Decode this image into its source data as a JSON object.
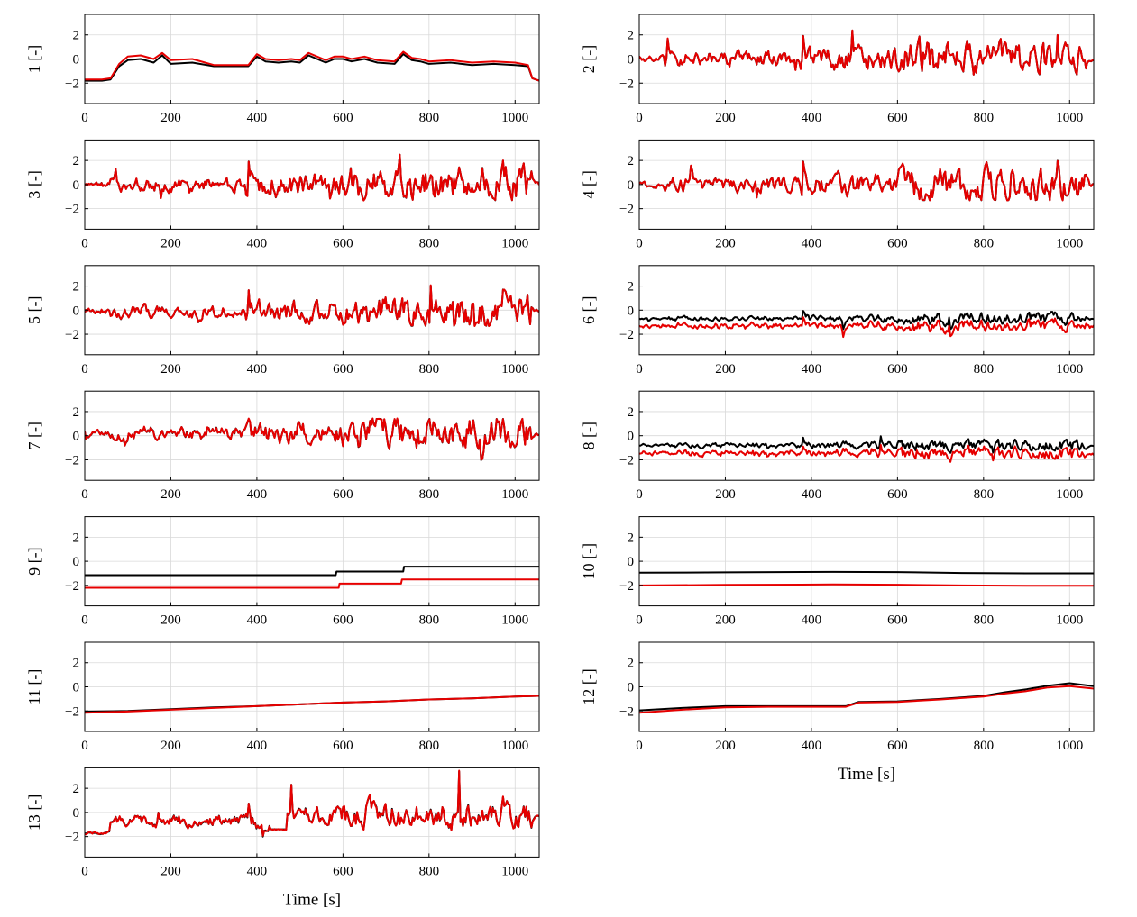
{
  "figure": {
    "x_label": "Time [s]",
    "colors": {
      "series_a": "#000000",
      "series_b": "#e60000",
      "grid": "#d9d9d9",
      "axis": "#000000"
    }
  },
  "chart_data": [
    {
      "id": 1,
      "type": "line",
      "ylabel": "1 [-]",
      "xlabel": "",
      "xlim": [
        0,
        1056
      ],
      "ylim": [
        -3.7,
        3.7
      ],
      "xticks": [
        0,
        200,
        400,
        600,
        800,
        1000
      ],
      "yticks": [
        -2,
        0,
        2
      ],
      "series": [
        {
          "name": "black",
          "x": [
            0,
            40,
            60,
            80,
            100,
            130,
            160,
            180,
            200,
            250,
            300,
            360,
            380,
            400,
            420,
            450,
            480,
            500,
            520,
            560,
            580,
            600,
            620,
            650,
            680,
            720,
            740,
            760,
            780,
            800,
            850,
            900,
            950,
            1000,
            1030,
            1040,
            1056
          ],
          "y": [
            -1.8,
            -1.8,
            -1.7,
            -0.6,
            -0.1,
            0.0,
            -0.3,
            0.3,
            -0.4,
            -0.3,
            -0.6,
            -0.6,
            -0.6,
            0.2,
            -0.2,
            -0.3,
            -0.2,
            -0.3,
            0.3,
            -0.3,
            0.0,
            0.0,
            -0.2,
            0.0,
            -0.3,
            -0.4,
            0.4,
            -0.1,
            -0.2,
            -0.4,
            -0.3,
            -0.5,
            -0.4,
            -0.5,
            -0.6,
            -1.6,
            -1.8
          ]
        },
        {
          "name": "red",
          "x": [
            0,
            40,
            60,
            80,
            100,
            130,
            160,
            180,
            200,
            250,
            300,
            360,
            380,
            400,
            420,
            450,
            480,
            500,
            520,
            560,
            580,
            600,
            620,
            650,
            680,
            720,
            740,
            760,
            780,
            800,
            850,
            900,
            950,
            1000,
            1030,
            1040,
            1056
          ],
          "y": [
            -1.7,
            -1.7,
            -1.6,
            -0.4,
            0.2,
            0.3,
            0.0,
            0.5,
            -0.1,
            0.0,
            -0.5,
            -0.5,
            -0.5,
            0.4,
            0.0,
            -0.1,
            0.0,
            -0.1,
            0.5,
            -0.1,
            0.2,
            0.2,
            0.0,
            0.2,
            -0.1,
            -0.2,
            0.6,
            0.1,
            0.0,
            -0.2,
            -0.1,
            -0.3,
            -0.2,
            -0.3,
            -0.5,
            -1.6,
            -1.8
          ]
        }
      ]
    },
    {
      "id": 2,
      "type": "line",
      "ylabel": "2 [-]",
      "xlabel": "",
      "xlim": [
        0,
        1056
      ],
      "ylim": [
        -3.7,
        3.7
      ],
      "xticks": [
        0,
        200,
        400,
        600,
        800,
        1000
      ],
      "yticks": [
        -2,
        0,
        2
      ],
      "noise": 1
    },
    {
      "id": 3,
      "type": "line",
      "ylabel": "3 [-]",
      "xlabel": "",
      "xlim": [
        0,
        1056
      ],
      "ylim": [
        -3.7,
        3.7
      ],
      "xticks": [
        0,
        200,
        400,
        600,
        800,
        1000
      ],
      "yticks": [
        -2,
        0,
        2
      ],
      "noise": 1
    },
    {
      "id": 4,
      "type": "line",
      "ylabel": "4 [-]",
      "xlabel": "",
      "xlim": [
        0,
        1056
      ],
      "ylim": [
        -3.7,
        3.7
      ],
      "xticks": [
        0,
        200,
        400,
        600,
        800,
        1000
      ],
      "yticks": [
        -2,
        0,
        2
      ],
      "noise": 1
    },
    {
      "id": 5,
      "type": "line",
      "ylabel": "5 [-]",
      "xlabel": "",
      "xlim": [
        0,
        1056
      ],
      "ylim": [
        -3.7,
        3.7
      ],
      "xticks": [
        0,
        200,
        400,
        600,
        800,
        1000
      ],
      "yticks": [
        -2,
        0,
        2
      ],
      "noise": 1
    },
    {
      "id": 6,
      "type": "line",
      "ylabel": "6 [-]",
      "xlabel": "",
      "xlim": [
        0,
        1056
      ],
      "ylim": [
        -3.7,
        3.7
      ],
      "xticks": [
        0,
        200,
        400,
        600,
        800,
        1000
      ],
      "yticks": [
        -2,
        0,
        2
      ],
      "noise": 1
    },
    {
      "id": 7,
      "type": "line",
      "ylabel": "7 [-]",
      "xlabel": "",
      "xlim": [
        0,
        1056
      ],
      "ylim": [
        -3.7,
        3.7
      ],
      "xticks": [
        0,
        200,
        400,
        600,
        800,
        1000
      ],
      "yticks": [
        -2,
        0,
        2
      ],
      "noise": 1
    },
    {
      "id": 8,
      "type": "line",
      "ylabel": "8 [-]",
      "xlabel": "",
      "xlim": [
        0,
        1056
      ],
      "ylim": [
        -3.7,
        3.7
      ],
      "xticks": [
        0,
        200,
        400,
        600,
        800,
        1000
      ],
      "yticks": [
        -2,
        0,
        2
      ],
      "noise": 1
    },
    {
      "id": 9,
      "type": "line",
      "ylabel": "9 [-]",
      "xlabel": "",
      "xlim": [
        0,
        1056
      ],
      "ylim": [
        -3.7,
        3.7
      ],
      "xticks": [
        0,
        200,
        400,
        600,
        800,
        1000
      ],
      "yticks": [
        -2,
        0,
        2
      ],
      "series": [
        {
          "name": "black",
          "x": [
            0,
            583,
            585,
            740,
            742,
            1056
          ],
          "y": [
            -1.15,
            -1.15,
            -0.85,
            -0.85,
            -0.45,
            -0.45
          ]
        },
        {
          "name": "red",
          "x": [
            0,
            590,
            592,
            735,
            737,
            1056
          ],
          "y": [
            -2.2,
            -2.2,
            -1.85,
            -1.85,
            -1.5,
            -1.5
          ]
        }
      ]
    },
    {
      "id": 10,
      "type": "line",
      "ylabel": "10 [-]",
      "xlabel": "",
      "xlim": [
        0,
        1056
      ],
      "ylim": [
        -3.7,
        3.7
      ],
      "xticks": [
        0,
        200,
        400,
        600,
        800,
        1000
      ],
      "yticks": [
        -2,
        0,
        2
      ],
      "series": [
        {
          "name": "black",
          "x": [
            0,
            200,
            450,
            600,
            750,
            900,
            1056
          ],
          "y": [
            -0.95,
            -0.92,
            -0.88,
            -0.9,
            -0.97,
            -1.0,
            -1.0
          ]
        },
        {
          "name": "red",
          "x": [
            0,
            200,
            450,
            600,
            750,
            900,
            1056
          ],
          "y": [
            -2.0,
            -1.96,
            -1.92,
            -1.94,
            -2.0,
            -2.03,
            -2.03
          ]
        }
      ]
    },
    {
      "id": 11,
      "type": "line",
      "ylabel": "11 [-]",
      "xlabel": "",
      "xlim": [
        0,
        1056
      ],
      "ylim": [
        -3.7,
        3.7
      ],
      "xticks": [
        0,
        200,
        400,
        600,
        800,
        1000
      ],
      "yticks": [
        -2,
        0,
        2
      ],
      "series": [
        {
          "name": "black",
          "x": [
            0,
            100,
            200,
            300,
            400,
            500,
            600,
            700,
            800,
            900,
            1000,
            1056
          ],
          "y": [
            -2.05,
            -2.0,
            -1.85,
            -1.7,
            -1.6,
            -1.45,
            -1.3,
            -1.2,
            -1.05,
            -0.95,
            -0.8,
            -0.75
          ]
        },
        {
          "name": "red",
          "x": [
            0,
            100,
            200,
            300,
            400,
            500,
            600,
            700,
            800,
            900,
            1000,
            1056
          ],
          "y": [
            -2.15,
            -2.05,
            -1.9,
            -1.75,
            -1.6,
            -1.45,
            -1.3,
            -1.2,
            -1.05,
            -0.95,
            -0.8,
            -0.75
          ]
        }
      ]
    },
    {
      "id": 12,
      "type": "line",
      "ylabel": "12 [-]",
      "xlabel": "Time [s]",
      "xlim": [
        0,
        1056
      ],
      "ylim": [
        -3.7,
        3.7
      ],
      "xticks": [
        0,
        200,
        400,
        600,
        800,
        1000
      ],
      "yticks": [
        -2,
        0,
        2
      ],
      "series": [
        {
          "name": "black",
          "x": [
            0,
            100,
            200,
            300,
            480,
            510,
            600,
            700,
            800,
            850,
            900,
            950,
            1000,
            1056
          ],
          "y": [
            -1.95,
            -1.75,
            -1.6,
            -1.6,
            -1.6,
            -1.25,
            -1.2,
            -1.0,
            -0.75,
            -0.45,
            -0.2,
            0.1,
            0.3,
            0.05
          ]
        },
        {
          "name": "red",
          "x": [
            0,
            100,
            200,
            300,
            480,
            510,
            600,
            700,
            800,
            850,
            900,
            950,
            1000,
            1056
          ],
          "y": [
            -2.15,
            -1.9,
            -1.7,
            -1.65,
            -1.65,
            -1.3,
            -1.25,
            -1.05,
            -0.8,
            -0.55,
            -0.35,
            -0.05,
            0.05,
            -0.15
          ]
        }
      ]
    },
    {
      "id": 13,
      "type": "line",
      "ylabel": "13 [-]",
      "xlabel": "Time [s]",
      "xlim": [
        0,
        1056
      ],
      "ylim": [
        -3.7,
        3.7
      ],
      "xticks": [
        0,
        200,
        400,
        600,
        800,
        1000
      ],
      "yticks": [
        -2,
        0,
        2
      ],
      "noise": 1
    }
  ]
}
